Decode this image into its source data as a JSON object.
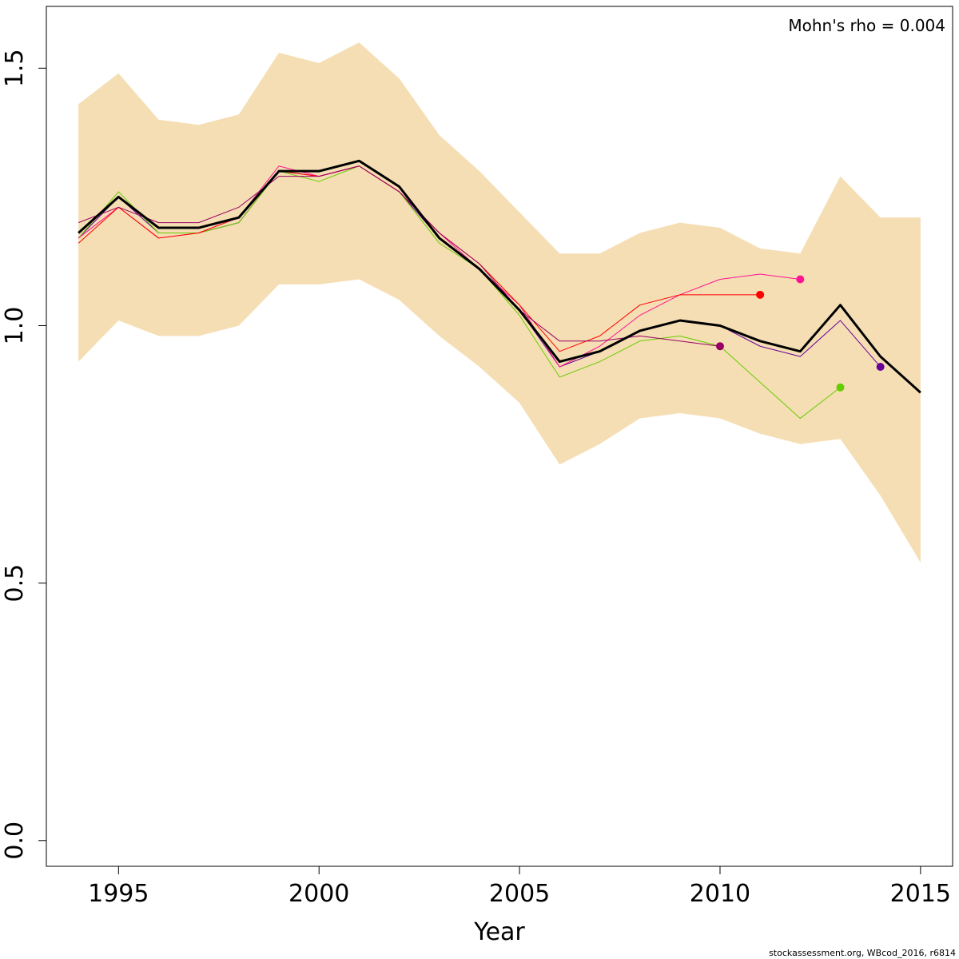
{
  "chart_data": {
    "type": "line",
    "title": "",
    "xlabel": "Year",
    "ylabel": "",
    "xlim": [
      1993.2,
      2015.8
    ],
    "ylim": [
      -0.05,
      1.62
    ],
    "xticks": [
      1995,
      2000,
      2005,
      2010,
      2015
    ],
    "xtick_labels": [
      "1995",
      "2000",
      "2005",
      "2010",
      "2015"
    ],
    "yticks": [
      0.0,
      0.5,
      1.0,
      1.5
    ],
    "ytick_labels": [
      "0.0",
      "0.5",
      "1.0",
      "1.5"
    ],
    "grid": false,
    "annotation": "Mohn's rho = 0.004",
    "footer": "stockassessment.org, WBcod_2016, r6814",
    "band": {
      "color": "#F5DEB3",
      "x": [
        1994,
        1995,
        1996,
        1997,
        1998,
        1999,
        2000,
        2001,
        2002,
        2003,
        2004,
        2005,
        2006,
        2007,
        2008,
        2009,
        2010,
        2011,
        2012,
        2013,
        2014,
        2015
      ],
      "upper": [
        1.43,
        1.49,
        1.4,
        1.39,
        1.41,
        1.53,
        1.51,
        1.55,
        1.48,
        1.37,
        1.3,
        1.22,
        1.14,
        1.14,
        1.18,
        1.2,
        1.19,
        1.15,
        1.14,
        1.29,
        1.21,
        1.21
      ],
      "lower": [
        0.93,
        1.01,
        0.98,
        0.98,
        1.0,
        1.08,
        1.08,
        1.09,
        1.05,
        0.98,
        0.92,
        0.85,
        0.73,
        0.77,
        0.82,
        0.83,
        0.82,
        0.79,
        0.77,
        0.78,
        0.67,
        0.54
      ]
    },
    "series": [
      {
        "color": "#000000",
        "width": 3,
        "endpoint": false,
        "x": [
          1994,
          1995,
          1996,
          1997,
          1998,
          1999,
          2000,
          2001,
          2002,
          2003,
          2004,
          2005,
          2006,
          2007,
          2008,
          2009,
          2010,
          2011,
          2012,
          2013,
          2014,
          2015
        ],
        "values": [
          1.18,
          1.25,
          1.19,
          1.19,
          1.21,
          1.3,
          1.3,
          1.32,
          1.27,
          1.17,
          1.11,
          1.03,
          0.93,
          0.95,
          0.99,
          1.01,
          1.0,
          0.97,
          0.95,
          1.04,
          0.94,
          0.87
        ]
      },
      {
        "color": "#660099",
        "width": 1,
        "endpoint": true,
        "x": [
          1994,
          1995,
          1996,
          1997,
          1998,
          1999,
          2000,
          2001,
          2002,
          2003,
          2004,
          2005,
          2006,
          2007,
          2008,
          2009,
          2010,
          2011,
          2012,
          2013,
          2014
        ],
        "values": [
          1.17,
          1.25,
          1.18,
          1.18,
          1.2,
          1.3,
          1.29,
          1.31,
          1.26,
          1.17,
          1.11,
          1.03,
          0.92,
          0.95,
          0.99,
          1.01,
          1.0,
          0.96,
          0.94,
          1.01,
          0.92
        ]
      },
      {
        "color": "#66CC00",
        "width": 1,
        "endpoint": true,
        "x": [
          1994,
          1995,
          1996,
          1997,
          1998,
          1999,
          2000,
          2001,
          2002,
          2003,
          2004,
          2005,
          2006,
          2007,
          2008,
          2009,
          2010,
          2011,
          2012,
          2013
        ],
        "values": [
          1.17,
          1.26,
          1.18,
          1.18,
          1.2,
          1.3,
          1.28,
          1.31,
          1.26,
          1.16,
          1.11,
          1.02,
          0.9,
          0.93,
          0.97,
          0.98,
          0.96,
          0.89,
          0.82,
          0.88
        ]
      },
      {
        "color": "#FF1493",
        "width": 1,
        "endpoint": true,
        "x": [
          1994,
          1995,
          1996,
          1997,
          1998,
          1999,
          2000,
          2001,
          2002,
          2003,
          2004,
          2005,
          2006,
          2007,
          2008,
          2009,
          2010,
          2011,
          2012
        ],
        "values": [
          1.17,
          1.23,
          1.17,
          1.18,
          1.21,
          1.31,
          1.29,
          1.31,
          1.26,
          1.18,
          1.11,
          1.04,
          0.92,
          0.96,
          1.02,
          1.06,
          1.09,
          1.1,
          1.09
        ]
      },
      {
        "color": "#FF0000",
        "width": 1,
        "endpoint": true,
        "x": [
          1994,
          1995,
          1996,
          1997,
          1998,
          1999,
          2000,
          2001,
          2002,
          2003,
          2004,
          2005,
          2006,
          2007,
          2008,
          2009,
          2010,
          2011
        ],
        "values": [
          1.16,
          1.23,
          1.17,
          1.18,
          1.21,
          1.3,
          1.29,
          1.31,
          1.26,
          1.18,
          1.12,
          1.04,
          0.95,
          0.98,
          1.04,
          1.06,
          1.06,
          1.06
        ]
      },
      {
        "color": "#990066",
        "width": 1,
        "endpoint": true,
        "x": [
          1994,
          1995,
          1996,
          1997,
          1998,
          1999,
          2000,
          2001,
          2002,
          2003,
          2004,
          2005,
          2006,
          2007,
          2008,
          2009,
          2010
        ],
        "values": [
          1.2,
          1.23,
          1.2,
          1.2,
          1.23,
          1.29,
          1.29,
          1.31,
          1.26,
          1.18,
          1.12,
          1.03,
          0.97,
          0.97,
          0.98,
          0.97,
          0.96
        ]
      }
    ]
  }
}
